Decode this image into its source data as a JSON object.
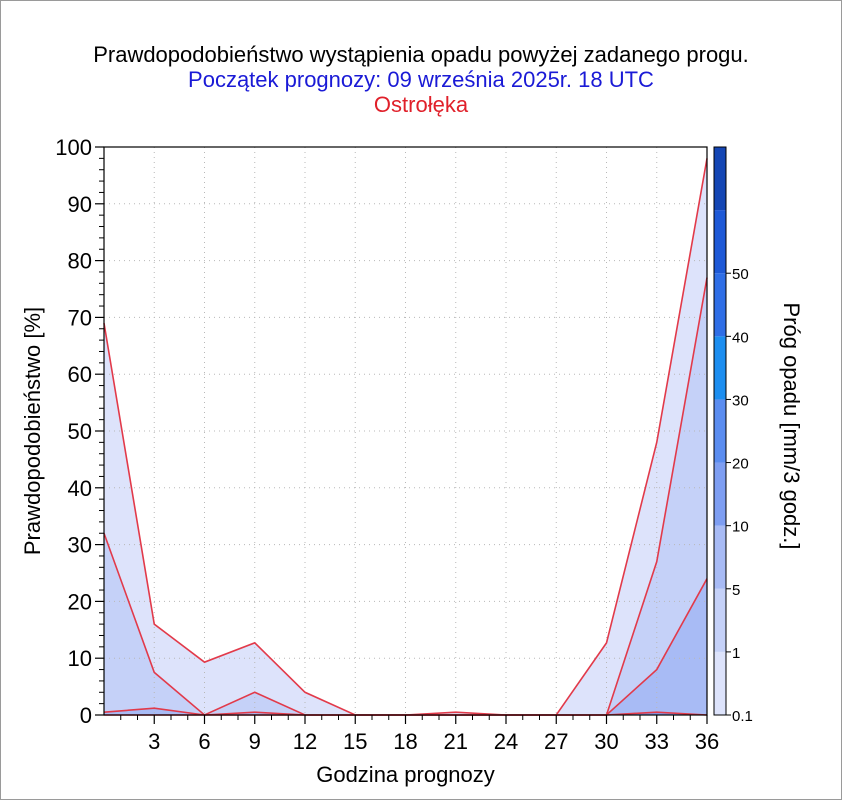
{
  "title": {
    "line1": "Prawdopodobieństwo wystąpienia opadu powyżej zadanego progu.",
    "line2": "Początek prognozy: 09 września 2025r. 18 UTC",
    "line3": "Ostrołęka"
  },
  "colors": {
    "line": "#e23a4a",
    "band_0.1": "#dde3fb",
    "band_1": "#c5d1f8",
    "band_5": "#a8bbf5",
    "band_10": "#7e9ef2",
    "band_20": "#5b8df0",
    "band_30": "#1c8ef0",
    "band_40": "#2f6ee6",
    "band_50": "#1e59d6",
    "band_top": "#1446b4"
  },
  "chart_data": {
    "type": "area",
    "xlabel": "Godzina prognozy",
    "ylabel": "Prawdopodobieństwo [%]",
    "colorbar_label": "Próg opadu [mm/3 godz.]",
    "x": [
      0,
      3,
      6,
      9,
      12,
      15,
      18,
      21,
      24,
      27,
      30,
      33,
      36
    ],
    "xticks": [
      3,
      6,
      9,
      12,
      15,
      18,
      21,
      24,
      27,
      30,
      33,
      36
    ],
    "xlim": [
      0,
      36
    ],
    "ylim": [
      0,
      100
    ],
    "yticks": [
      0,
      10,
      20,
      30,
      40,
      50,
      60,
      70,
      80,
      90,
      100
    ],
    "grid": true,
    "series": [
      {
        "name": "0.1",
        "values": [
          69,
          16,
          9.3,
          12.7,
          4,
          0,
          0,
          0.5,
          0,
          0,
          12.7,
          48,
          98
        ]
      },
      {
        "name": "1",
        "values": [
          32,
          7.5,
          0,
          4,
          0,
          0,
          0,
          0,
          0,
          0,
          0,
          27,
          77
        ]
      },
      {
        "name": "5",
        "values": [
          0.5,
          1.2,
          0,
          0.5,
          0,
          0,
          0,
          0,
          0,
          0,
          0,
          8,
          24
        ]
      },
      {
        "name": "10",
        "values": [
          0,
          0,
          0,
          0,
          0,
          0,
          0,
          0,
          0,
          0,
          0,
          0.5,
          0
        ]
      }
    ],
    "colorbar_ticks": [
      "0.1",
      "1",
      "5",
      "10",
      "20",
      "30",
      "40",
      "50"
    ]
  }
}
